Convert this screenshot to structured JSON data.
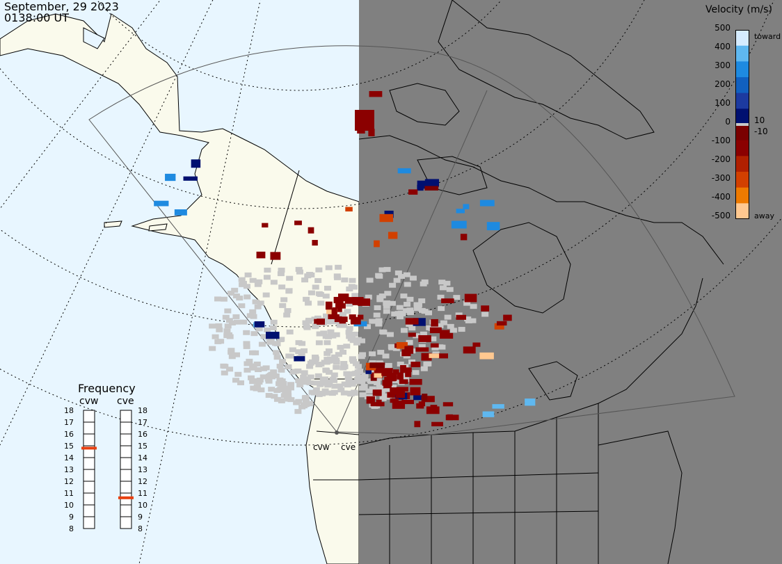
{
  "title": {
    "date": "September, 29 2023",
    "time": "0138:00 UT"
  },
  "colorbar": {
    "title": "Velocity (m/s)",
    "ticks": [
      "500",
      "400",
      "300",
      "200",
      "100",
      "0",
      "-100",
      "-200",
      "-300",
      "-400",
      "-500"
    ],
    "toward_label": "toward",
    "away_label": "away",
    "pos_small": "10",
    "neg_small": "-10",
    "colors": [
      "#d6ecff",
      "#5fb8f0",
      "#1e8ae0",
      "#1160c0",
      "#1c3aa0",
      "#001070",
      "#7a0000",
      "#8b0000",
      "#b02000",
      "#d24000",
      "#ee7a00",
      "#ffc890"
    ]
  },
  "frequency": {
    "title": "Frequency",
    "radars": [
      {
        "name": "cvw",
        "value": 14.8
      },
      {
        "name": "cve",
        "value": 10.6
      }
    ],
    "scale": [
      "18",
      "17",
      "16",
      "15",
      "14",
      "13",
      "12",
      "11",
      "10",
      "9",
      "8"
    ]
  },
  "radar_labels": {
    "cvw": "cvw",
    "cve": "cve"
  },
  "colors": {
    "ocean": "#e8f6ff",
    "land": "#fafaec",
    "night": "#808080",
    "ground_scatter": "#c8c8c8",
    "freq_marker": "#e84010"
  }
}
